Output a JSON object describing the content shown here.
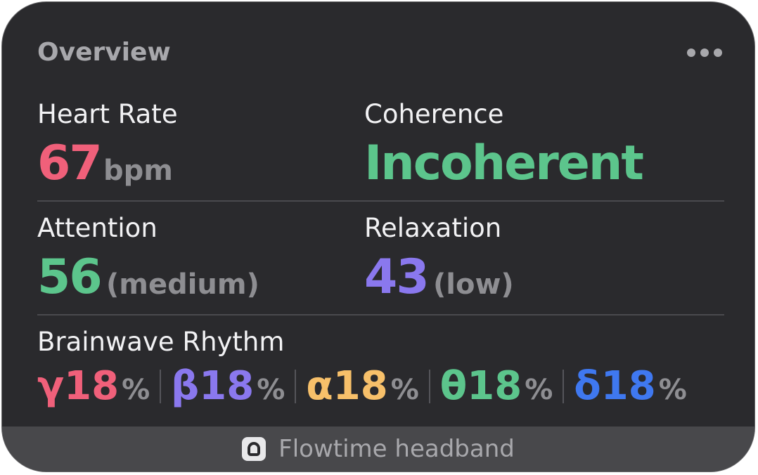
{
  "widget": {
    "title": "Overview",
    "more_icon": "ellipsis-icon"
  },
  "metrics": {
    "heart_rate": {
      "label": "Heart Rate",
      "value": "67",
      "unit": "bpm",
      "color": "#f0607a"
    },
    "coherence": {
      "label": "Coherence",
      "value": "Incoherent",
      "color": "#5cc58c"
    },
    "attention": {
      "label": "Attention",
      "value": "56",
      "qualifier": "(medium)",
      "color": "#5cc58c"
    },
    "relaxation": {
      "label": "Relaxation",
      "value": "43",
      "qualifier": "(low)",
      "color": "#8a78ee"
    }
  },
  "brainwave": {
    "label": "Brainwave Rhythm",
    "bands": [
      {
        "symbol": "γ",
        "value": "18",
        "unit": "%",
        "color": "#f0607a"
      },
      {
        "symbol": "β",
        "value": "18",
        "unit": "%",
        "color": "#8a78ee"
      },
      {
        "symbol": "α",
        "value": "18",
        "unit": "%",
        "color": "#f7c06a"
      },
      {
        "symbol": "θ",
        "value": "18",
        "unit": "%",
        "color": "#5cc58c"
      },
      {
        "symbol": "δ",
        "value": "18",
        "unit": "%",
        "color": "#3f78f0"
      }
    ]
  },
  "footer": {
    "icon": "headband-icon",
    "label": "Flowtime headband"
  }
}
